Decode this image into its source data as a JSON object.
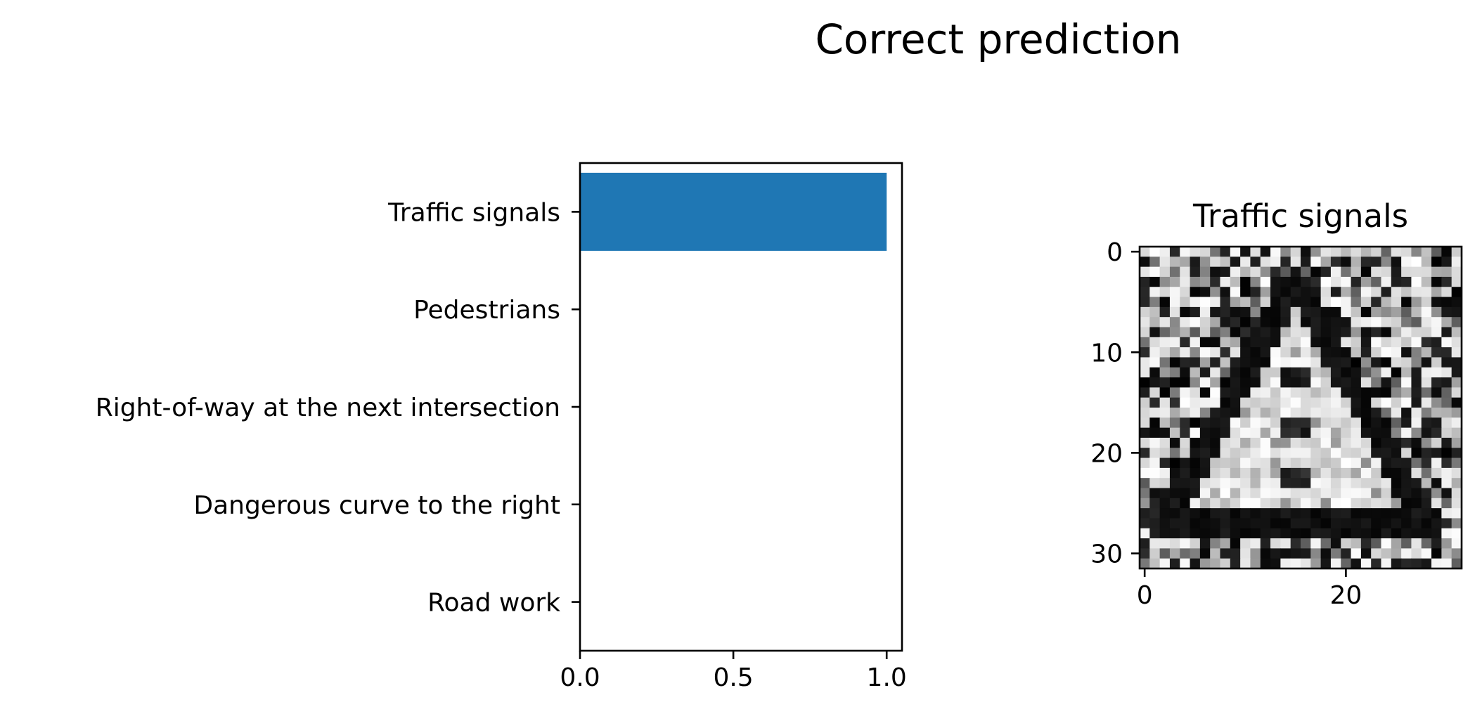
{
  "figure": {
    "suptitle": "Correct prediction"
  },
  "chart_data": [
    {
      "type": "bar",
      "orientation": "horizontal",
      "categories": [
        "Traffic signals",
        "Pedestrians",
        "Right-of-way at the next intersection",
        "Dangerous curve to the right",
        "Road work"
      ],
      "values": [
        1.0,
        0.0,
        0.0,
        0.0,
        0.0
      ],
      "xlim": [
        0,
        1.05
      ],
      "xticks": [
        0.0,
        0.5,
        1.0
      ],
      "xtick_labels": [
        "0.0",
        "0.5",
        "1.0"
      ],
      "bar_color": "#1f77b4",
      "grid": false
    },
    {
      "type": "heatmap",
      "title": "Traffic signals",
      "colormap": "gray",
      "image_size": [
        32,
        32
      ],
      "xticks": [
        0,
        20
      ],
      "yticks": [
        0,
        10,
        20,
        30
      ],
      "xtick_labels": [
        "0",
        "20"
      ],
      "ytick_labels": [
        "0",
        "10",
        "20",
        "30"
      ]
    }
  ]
}
